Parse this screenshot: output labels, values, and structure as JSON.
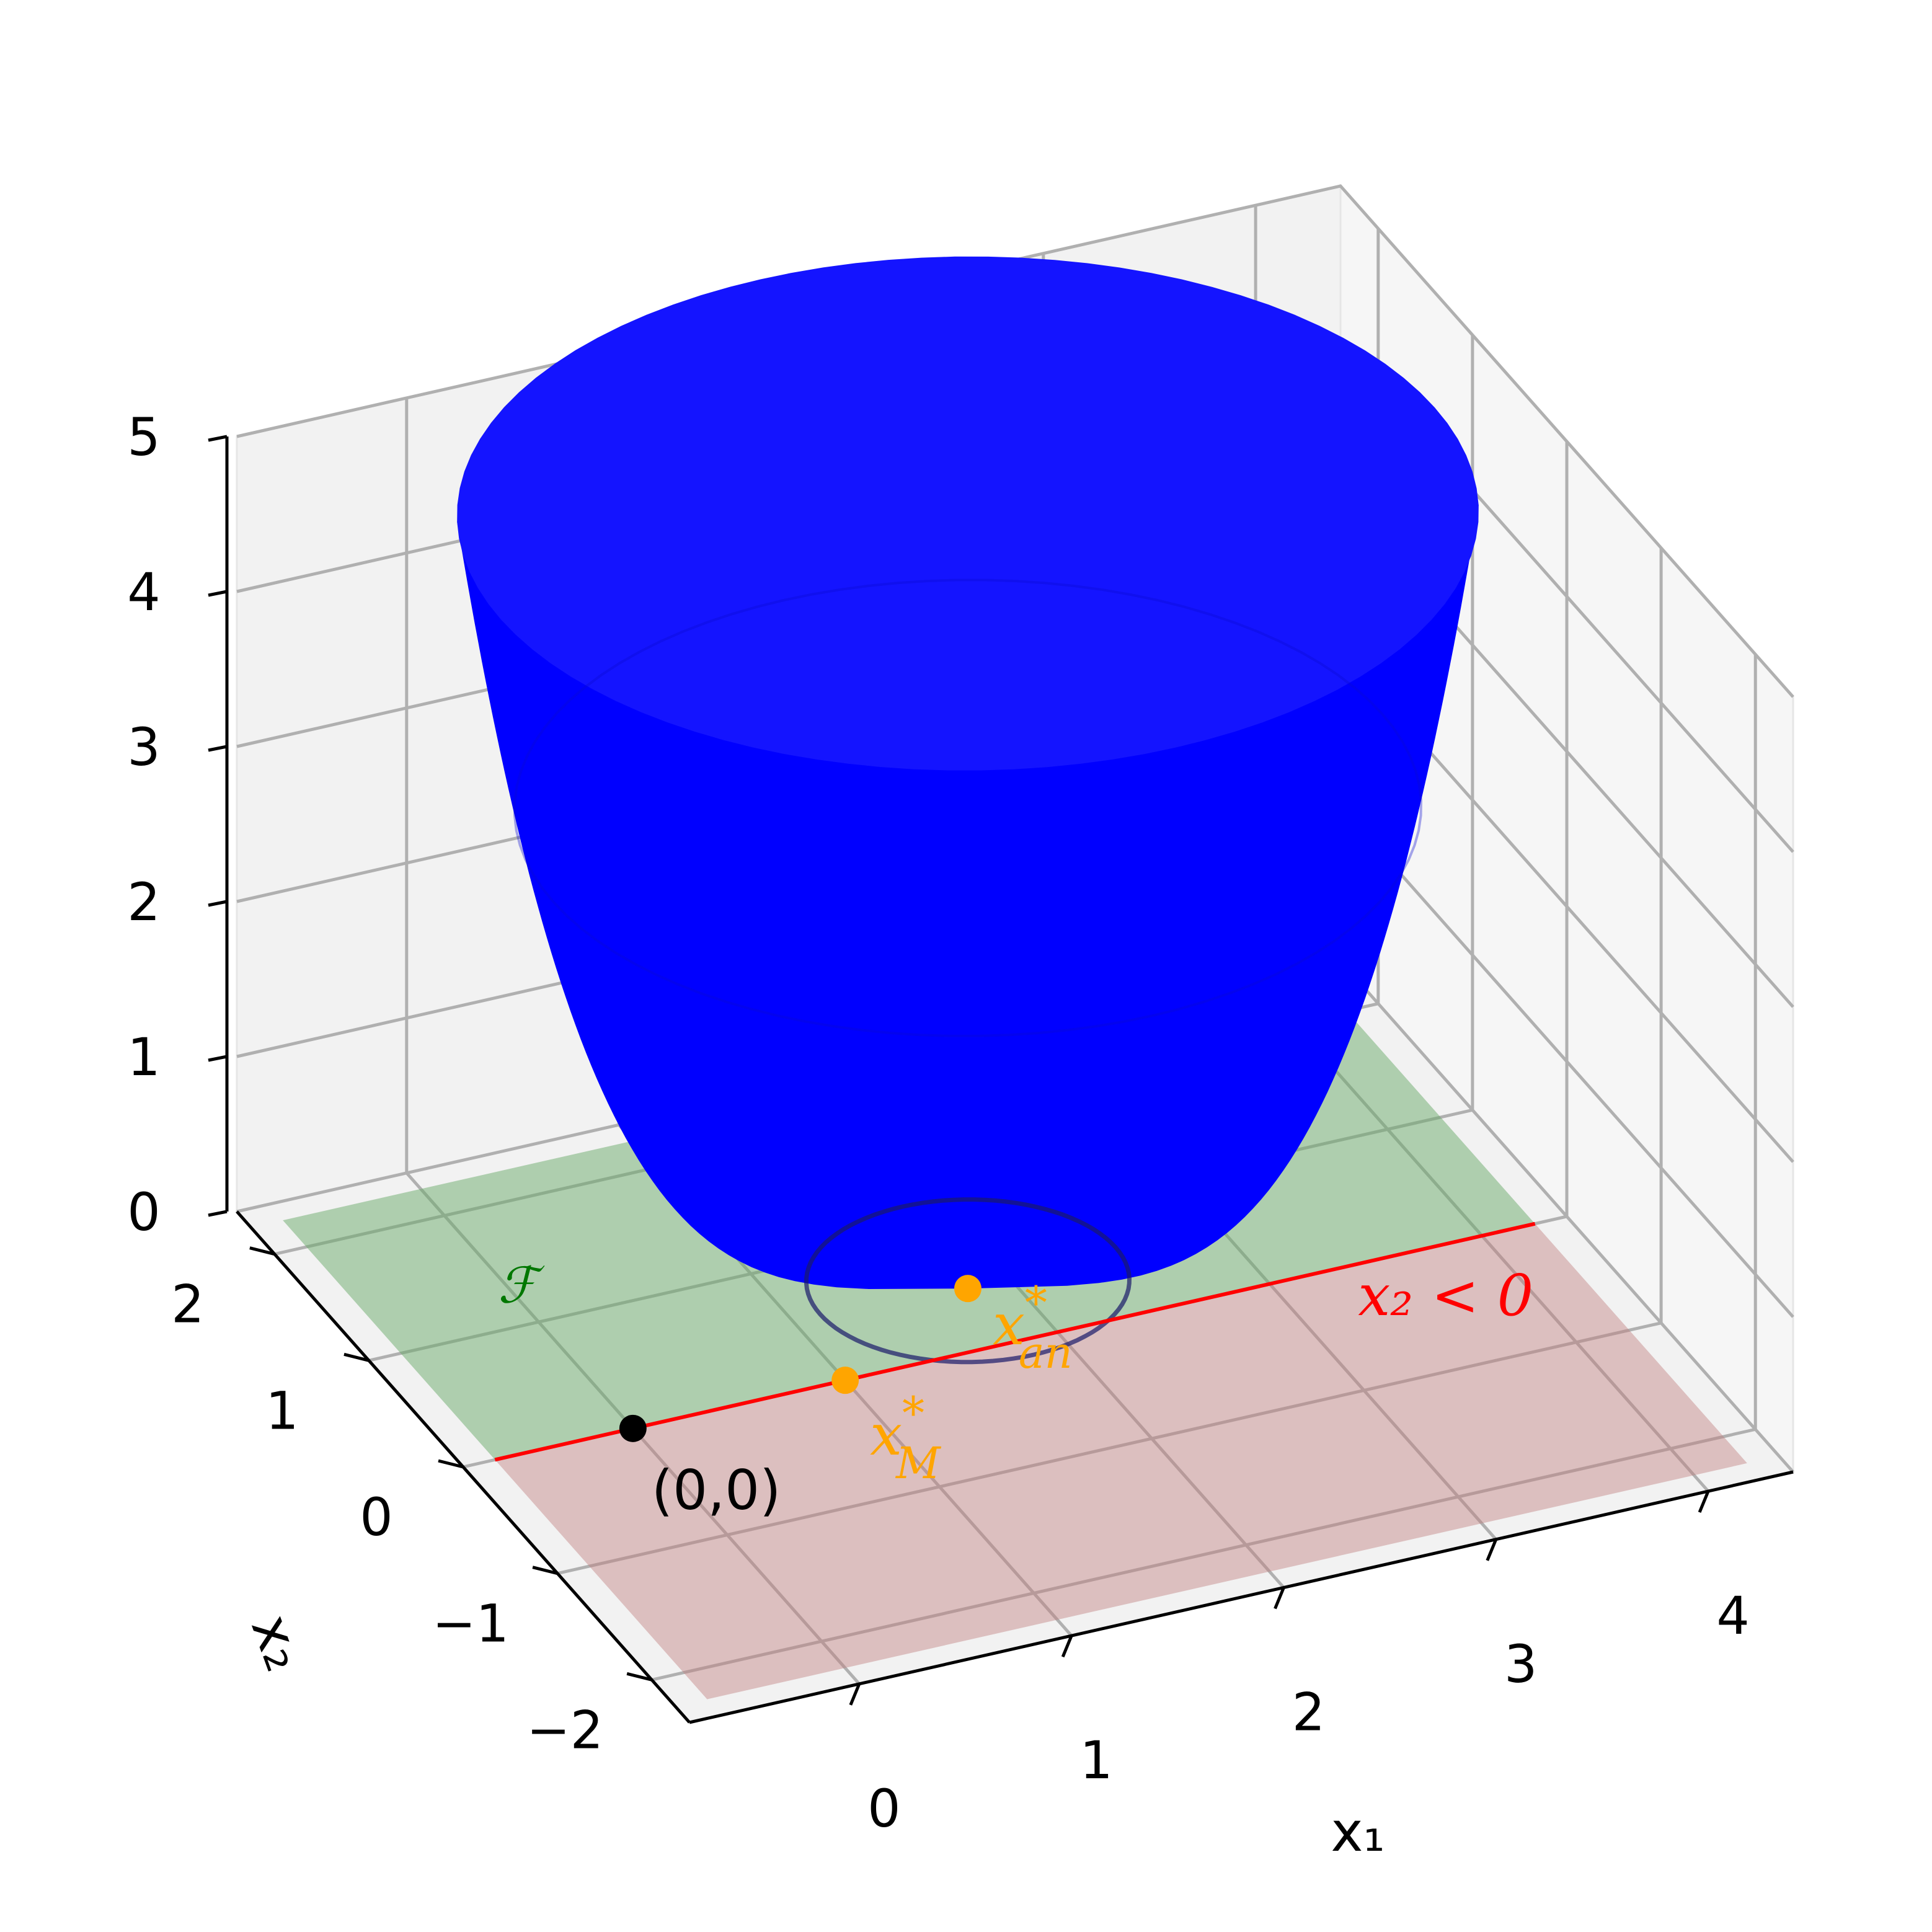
{
  "chart_data": {
    "type": "surface3d",
    "title": "",
    "xlabel": "x₁",
    "ylabel": "x₂",
    "zlabel": "",
    "xlim": [
      -0.8,
      4.4
    ],
    "ylim": [
      -2.4,
      2.4
    ],
    "zlim": [
      0,
      5
    ],
    "x_ticks": [
      0,
      1,
      2,
      3,
      4
    ],
    "y_ticks": [
      -2,
      -1,
      0,
      1,
      2
    ],
    "z_ticks": [
      0,
      1,
      2,
      3,
      4,
      5
    ],
    "x_tick_labels": [
      "0",
      "1",
      "2",
      "3",
      "4"
    ],
    "y_tick_labels": [
      "−2",
      "−1",
      "0",
      "1",
      "2"
    ],
    "z_tick_labels": [
      "0",
      "1",
      "2",
      "3",
      "4",
      "5"
    ],
    "grid": true,
    "view": {
      "elevation": 20,
      "azimuth": -65
    },
    "surface": {
      "function": "bowl z = r^4 around center, r = distance from (1.8, 0.5)",
      "center": [
        1.8,
        0.5
      ],
      "max_radius": 2.2,
      "zmax": 5,
      "color": "#0000ff",
      "ghost_color": "#b8b0d0"
    },
    "regions": [
      {
        "name": "feasible",
        "label": "ℱ",
        "condition": "x2 ≥ 0",
        "color": "#6aaa6a"
      },
      {
        "name": "infeasible",
        "label": "x₂ < 0",
        "condition": "x2 < 0",
        "color": "#c08080"
      }
    ],
    "boundary_line": {
      "x2": 0,
      "color": "#ff0000"
    },
    "points": [
      {
        "name": "origin",
        "label": "(0,0)",
        "x": 0,
        "y": 0,
        "z": 0,
        "color": "#000000"
      },
      {
        "name": "x-an-star",
        "label_base": "x",
        "label_sub": "an",
        "label_sup": "*",
        "x": 1.8,
        "y": 0.5,
        "z": 0,
        "color": "#ffa500"
      },
      {
        "name": "x-m-star",
        "label_base": "x",
        "label_sub": "M",
        "label_sup": "*",
        "x": 1.0,
        "y": 0.0,
        "z": 0,
        "color": "#ffa500"
      }
    ],
    "colors": {
      "red": "#ff0000",
      "green": "#007700",
      "orange": "#ffa500"
    }
  }
}
